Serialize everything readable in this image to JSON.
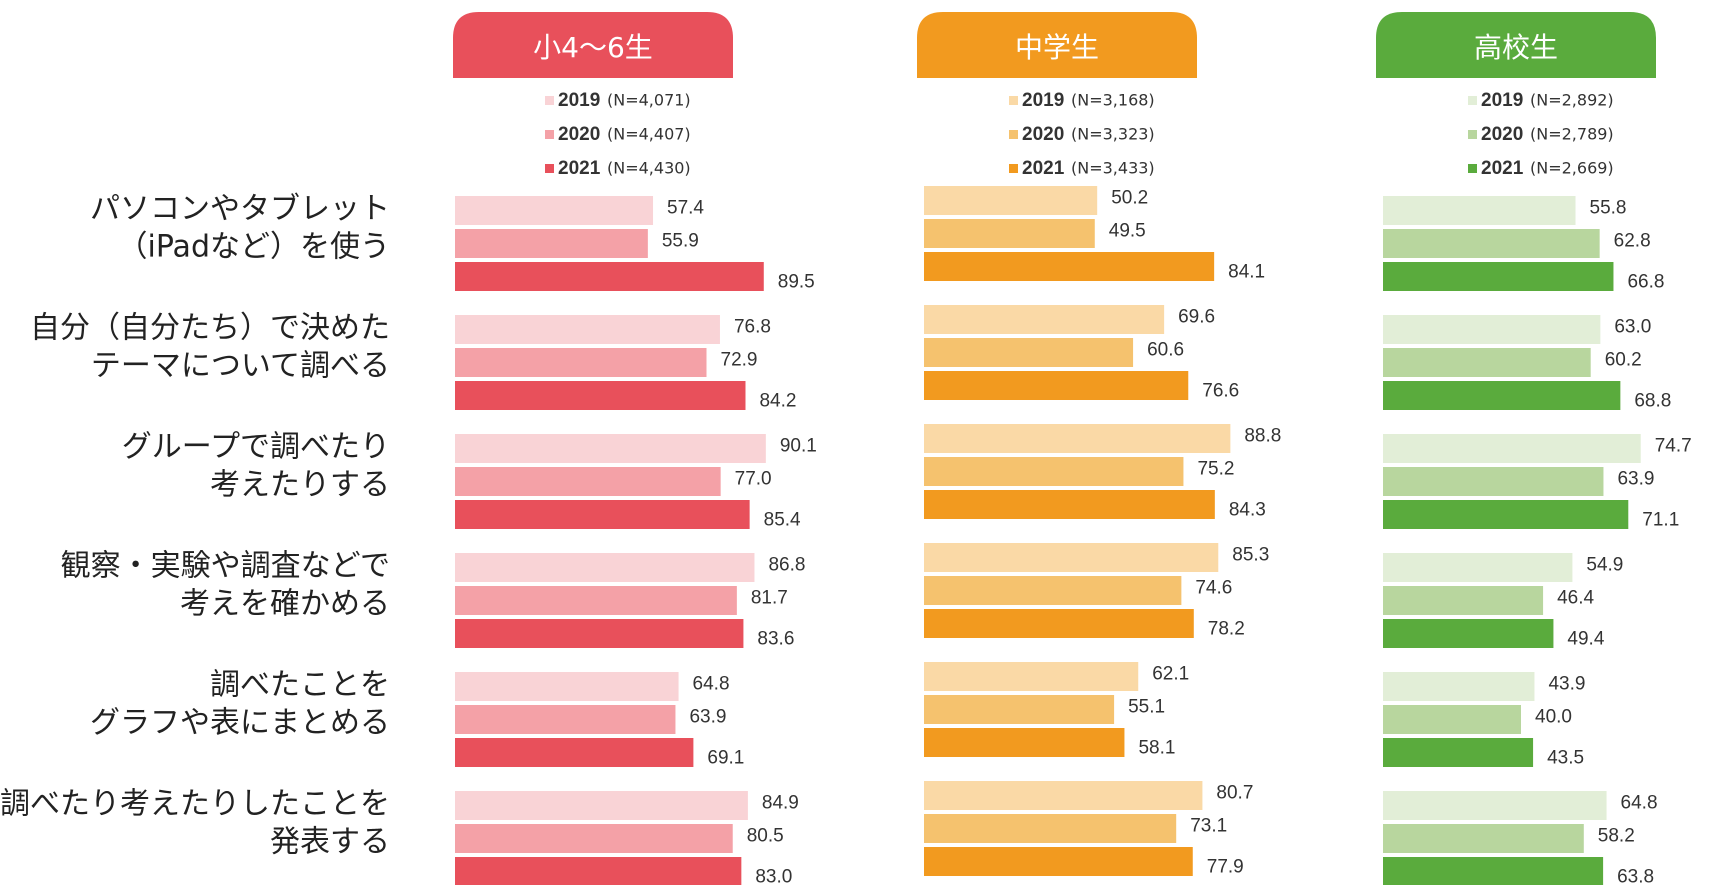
{
  "categories": [
    [
      "パソコンやタブレット",
      "（iPadなど）を使う"
    ],
    [
      "自分（自分たち）で決めた",
      "テーマについて調べる"
    ],
    [
      "グループで調べたり",
      "考えたりする"
    ],
    [
      "観察・実験や調査などで",
      "考えを確かめる"
    ],
    [
      "調べたことを",
      "グラフや表にまとめる"
    ],
    [
      "調べたり考えたりしたことを",
      "発表する"
    ]
  ],
  "chart_data": [
    {
      "type": "bar",
      "title": "小4～6生",
      "color": "#e8505b",
      "series": [
        {
          "name": "2019",
          "note": "(N=4,071)",
          "color": "#f9d3d6",
          "values": [
            57.4,
            76.8,
            90.1,
            86.8,
            64.8,
            84.9
          ]
        },
        {
          "name": "2020",
          "note": "(N=4,407)",
          "color": "#f4a1a7",
          "values": [
            55.9,
            72.9,
            77.0,
            81.7,
            63.9,
            80.5
          ],
          "value_labels": [
            "55.9",
            "72.9",
            "77.0",
            "81.7",
            "63.9",
            "80.5"
          ]
        },
        {
          "name": "2021",
          "note": "(N=4,430)",
          "color": "#e8505b",
          "values": [
            89.5,
            84.2,
            85.4,
            83.6,
            69.1,
            83.0
          ],
          "value_labels": [
            "89.5",
            "84.2",
            "85.4",
            "83.6",
            "69.1",
            "83.0"
          ]
        }
      ]
    },
    {
      "type": "bar",
      "title": "中学生",
      "color": "#f29a1f",
      "series": [
        {
          "name": "2019",
          "note": "(N=3,168)",
          "color": "#fad9a6",
          "values": [
            50.2,
            69.6,
            88.8,
            85.3,
            62.1,
            80.7
          ]
        },
        {
          "name": "2020",
          "note": "(N=3,323)",
          "color": "#f5c26e",
          "values": [
            49.5,
            60.6,
            75.2,
            74.6,
            55.1,
            73.1
          ]
        },
        {
          "name": "2021",
          "note": "(N=3,433)",
          "color": "#f29a1f",
          "values": [
            84.1,
            76.6,
            84.3,
            78.2,
            58.1,
            77.9
          ]
        }
      ]
    },
    {
      "type": "bar",
      "title": "高校生",
      "color": "#5aab3d",
      "series": [
        {
          "name": "2019",
          "note": "(N=2,892)",
          "color": "#e2eed7",
          "values": [
            55.8,
            63.0,
            74.7,
            54.9,
            43.9,
            64.8
          ],
          "value_labels": [
            "55.8",
            "63.0",
            "74.7",
            "54.9",
            "43.9",
            "64.8"
          ]
        },
        {
          "name": "2020",
          "note": "(N=2,789)",
          "color": "#b8d69e",
          "values": [
            62.8,
            60.2,
            63.9,
            46.4,
            40.0,
            58.2
          ],
          "value_labels": [
            "62.8",
            "60.2",
            "63.9",
            "46.4",
            "40.0",
            "58.2"
          ]
        },
        {
          "name": "2021",
          "note": "(N=2,669)",
          "color": "#5aab3d",
          "values": [
            66.8,
            68.8,
            71.1,
            49.4,
            43.5,
            63.8
          ],
          "value_labels": [
            "66.8",
            "68.8",
            "71.1",
            "49.4",
            "43.5",
            "63.8"
          ]
        }
      ]
    }
  ]
}
